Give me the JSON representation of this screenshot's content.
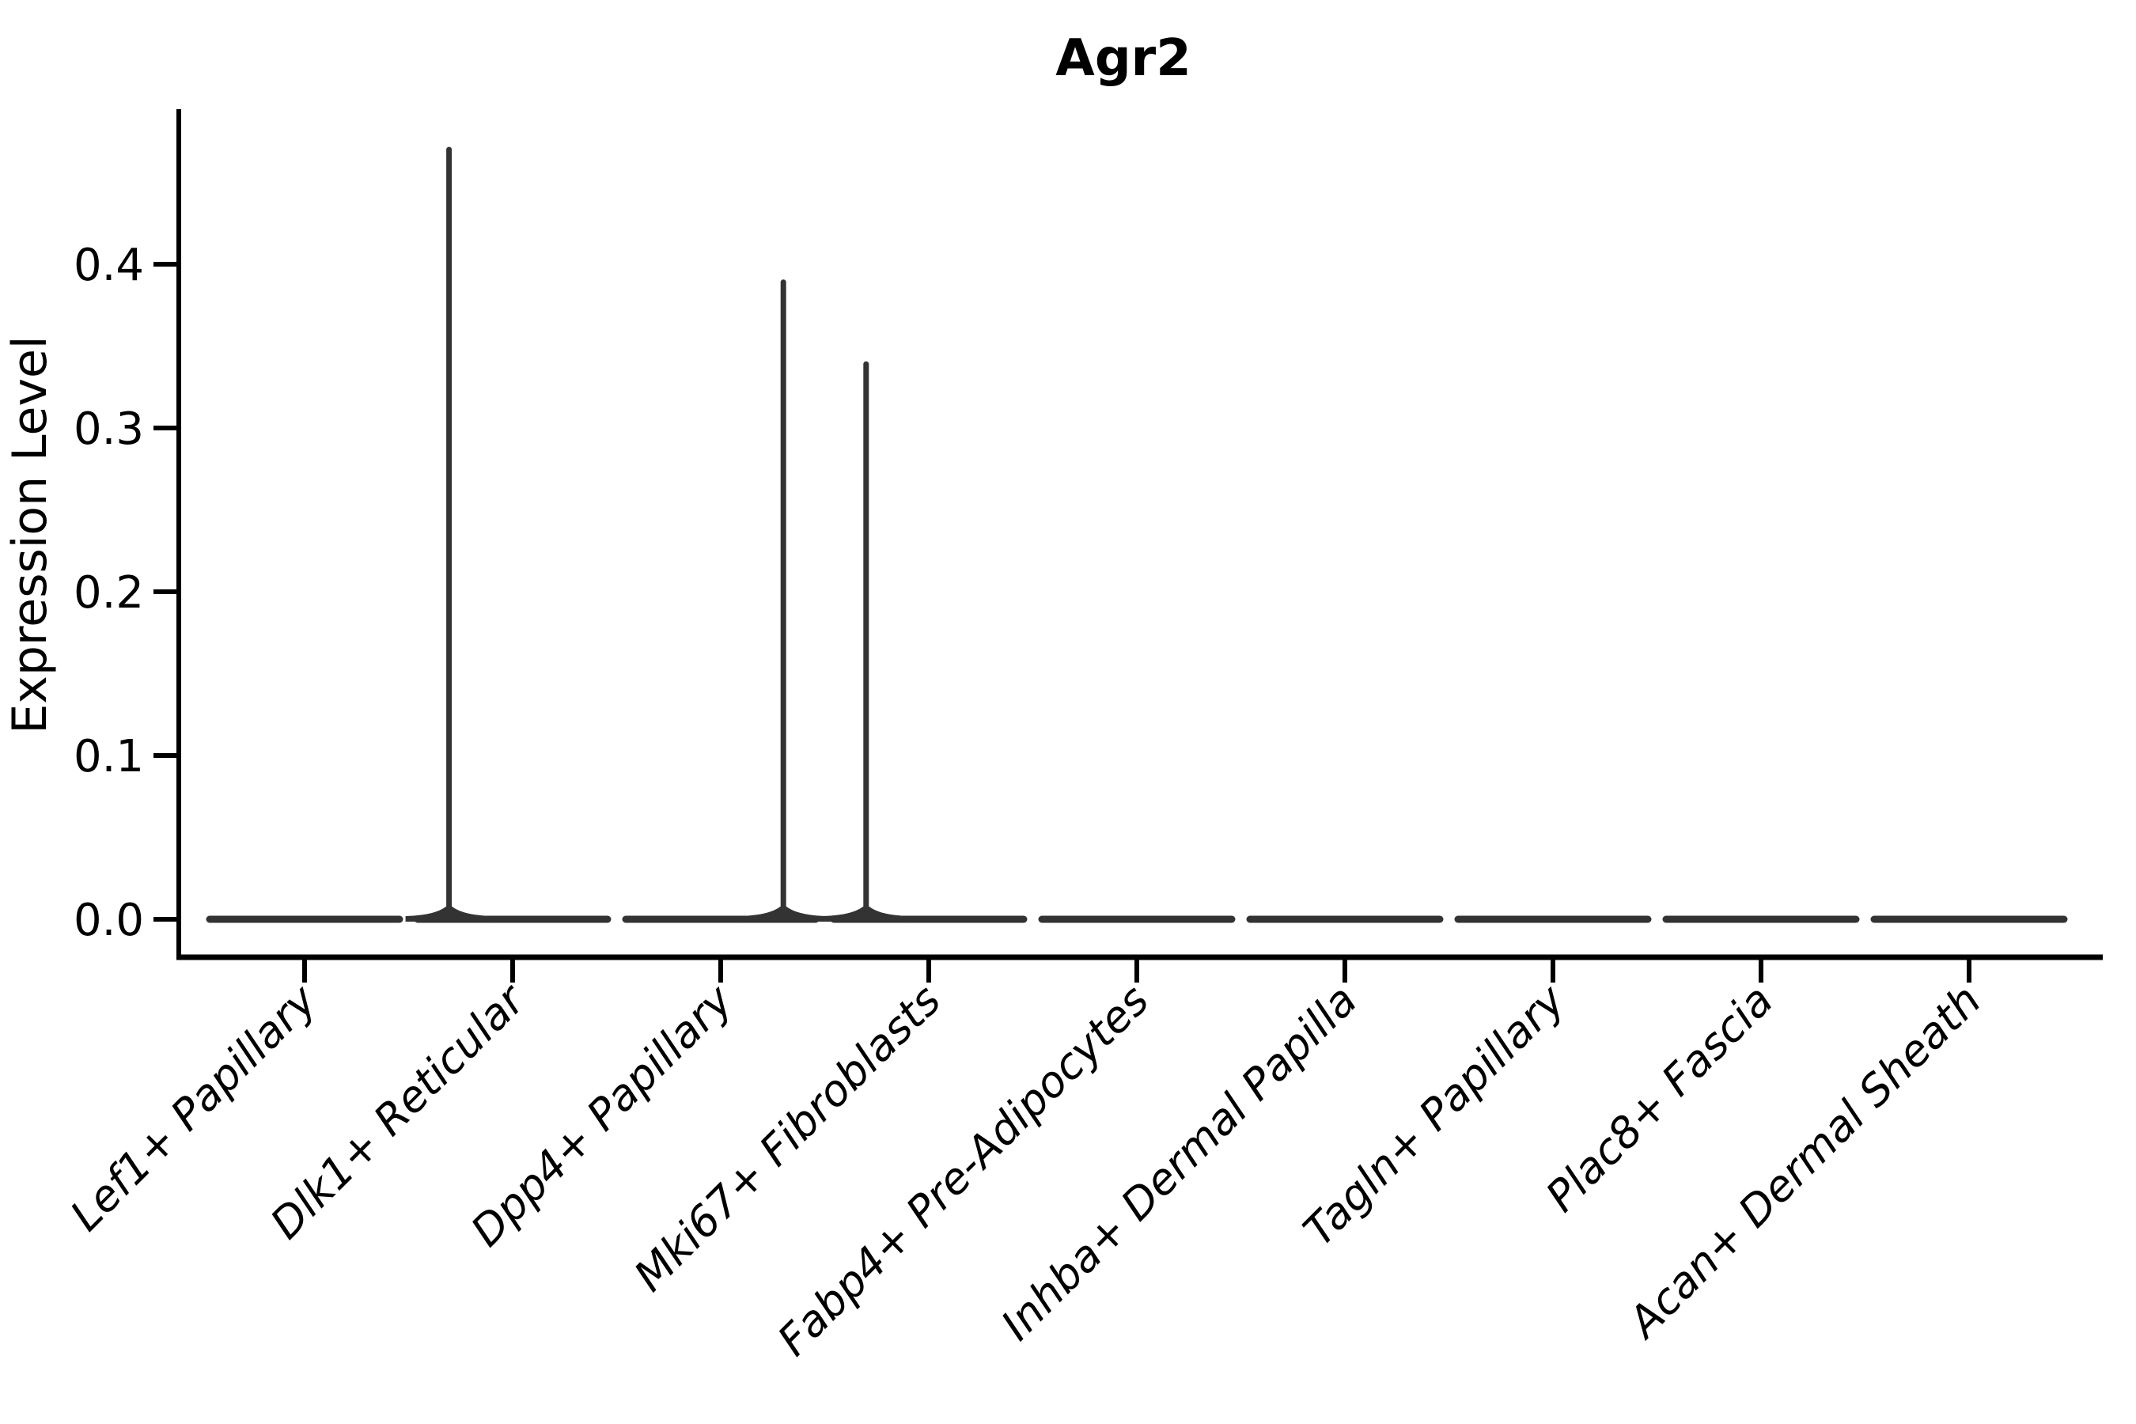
{
  "chart_data": {
    "type": "violin",
    "title": "Agr2",
    "ylabel": "Expression Level",
    "xlabel": "",
    "categories": [
      "Lef1+ Papillary",
      "Dlk1+ Reticular",
      "Dpp4+ Papillary",
      "Mki67+ Fibroblasts",
      "Fabp4+ Pre-Adipocytes",
      "Inhba+ Dermal Papilla",
      "Tagln+ Papillary",
      "Plac8+ Fascia",
      "Acan+ Dermal Sheath"
    ],
    "max_expression": [
      0,
      0.47,
      0.389,
      0.339,
      0,
      0,
      0,
      0,
      0
    ],
    "spike_offset_frac": [
      0,
      -0.67,
      0.66,
      -0.66,
      0,
      0,
      0,
      0,
      0
    ],
    "y_ticks": [
      "0.0",
      "0.1",
      "0.2",
      "0.3",
      "0.4"
    ],
    "y_tick_values": [
      0.0,
      0.1,
      0.2,
      0.3,
      0.4
    ],
    "ylim": [
      -0.023,
      0.494
    ],
    "grid": false,
    "legend_position": "none",
    "violin_color": "#333333",
    "axis_color": "#000000",
    "background": "#ffffff"
  }
}
